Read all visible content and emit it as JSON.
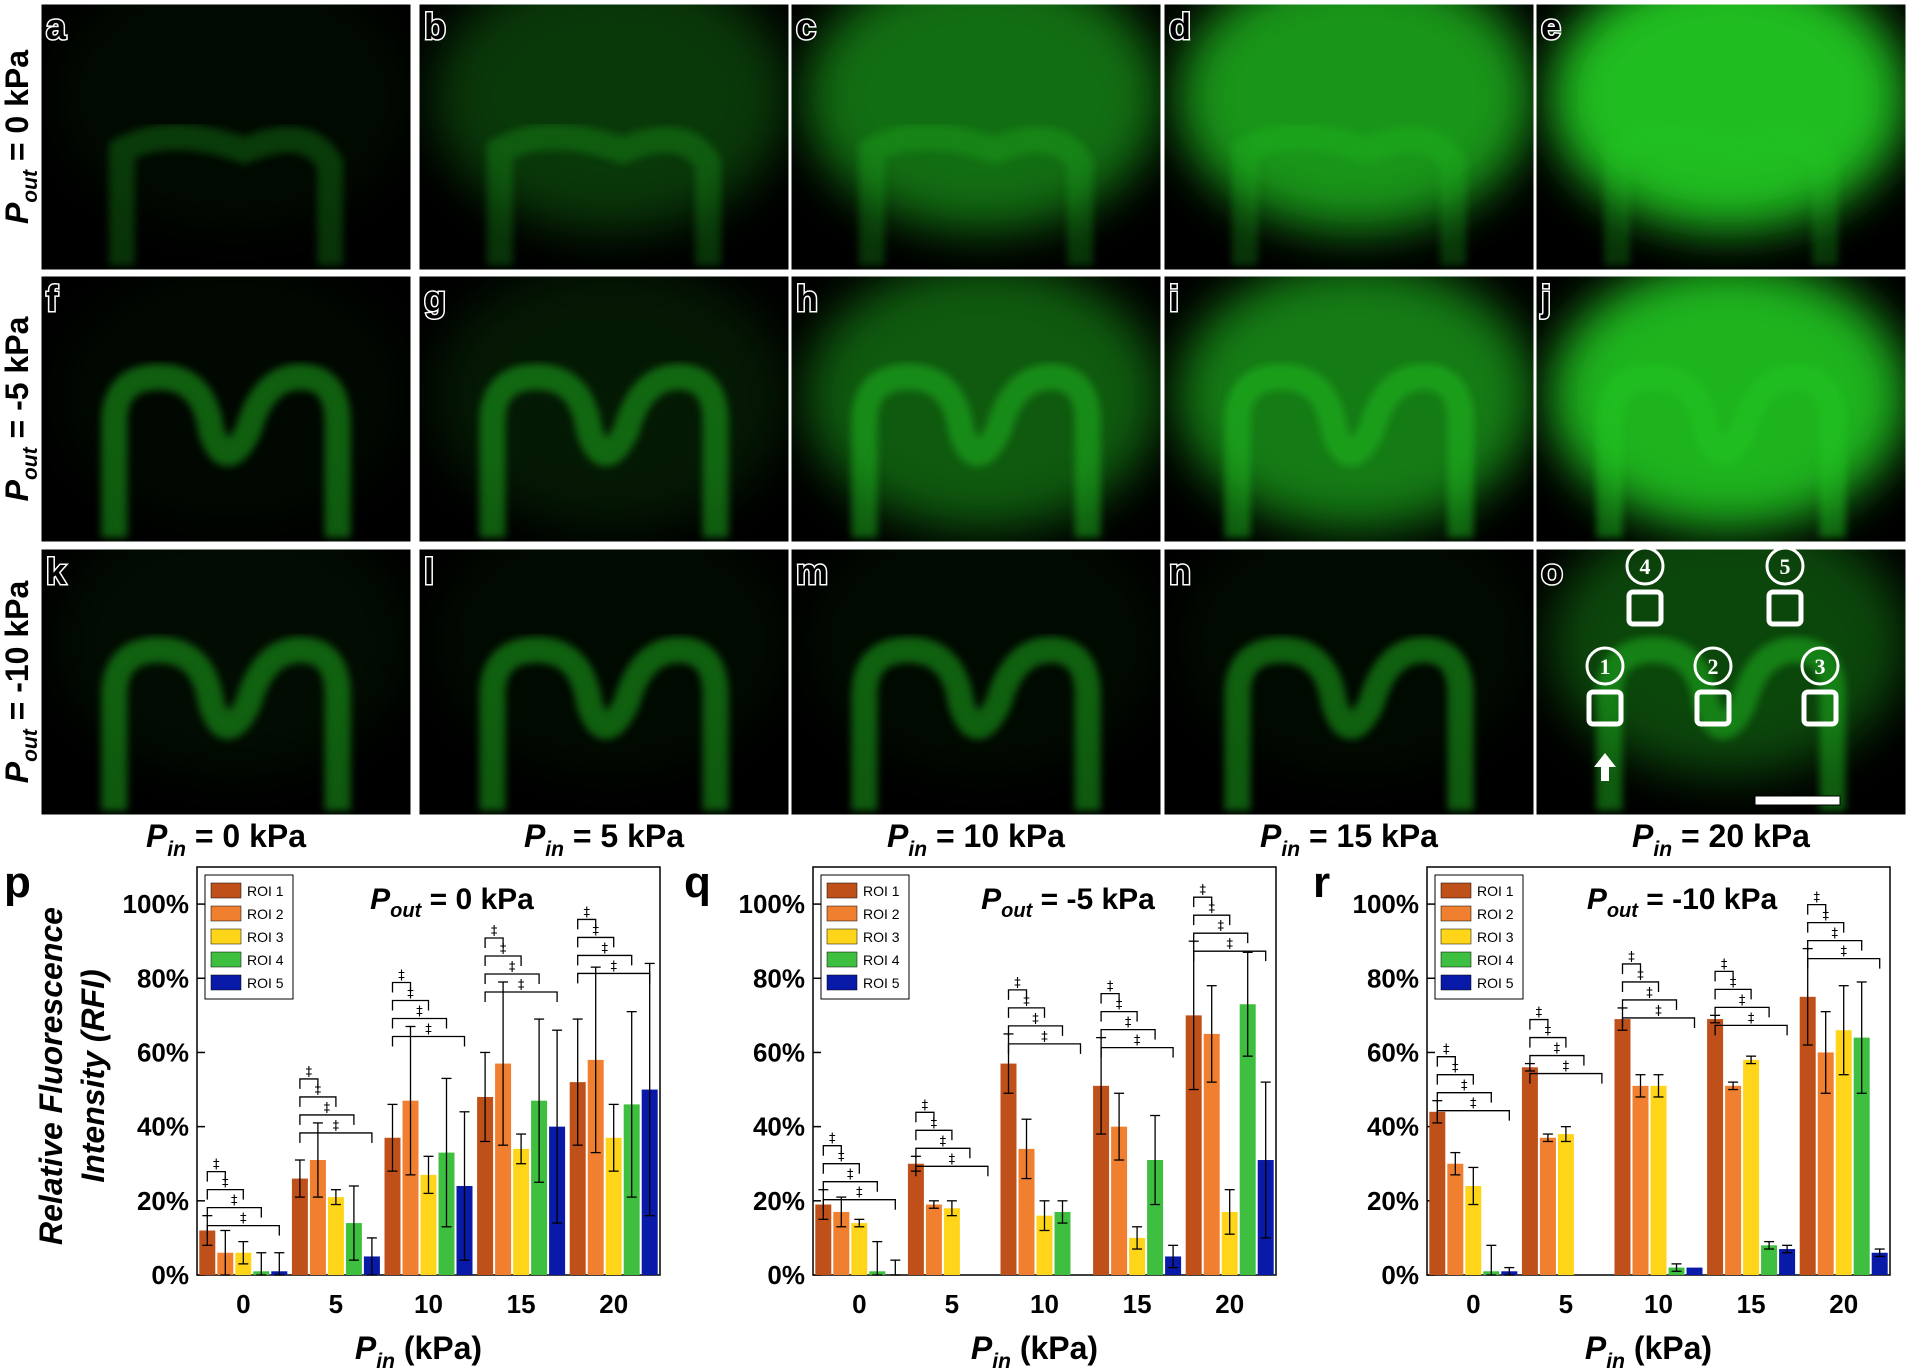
{
  "figure": {
    "panel_letters": [
      "a",
      "b",
      "c",
      "d",
      "e",
      "f",
      "g",
      "h",
      "i",
      "j",
      "k",
      "l",
      "m",
      "n",
      "o"
    ],
    "row_labels": [
      {
        "symbol": "P",
        "sub": "out",
        "rest": " = 0 kPa"
      },
      {
        "symbol": "P",
        "sub": "out",
        "rest": " = -5 kPa"
      },
      {
        "symbol": "P",
        "sub": "out",
        "rest": " = -10 kPa"
      }
    ],
    "column_labels": [
      {
        "symbol": "P",
        "sub": "in",
        "rest": " = 0 kPa"
      },
      {
        "symbol": "P",
        "sub": "in",
        "rest": " = 5 kPa"
      },
      {
        "symbol": "P",
        "sub": "in",
        "rest": " = 10 kPa"
      },
      {
        "symbol": "P",
        "sub": "in",
        "rest": " = 15 kPa"
      },
      {
        "symbol": "P",
        "sub": "in",
        "rest": " = 20 kPa"
      }
    ],
    "roi_markers": [
      "1",
      "2",
      "3",
      "4",
      "5"
    ],
    "image_brightness": [
      [
        0.05,
        0.28,
        0.55,
        0.75,
        0.95
      ],
      [
        0.04,
        0.12,
        0.45,
        0.62,
        0.9
      ],
      [
        0.06,
        0.05,
        0.05,
        0.05,
        0.35
      ]
    ],
    "colors": {
      "ROI 1": "#c0501a",
      "ROI 2": "#f07f30",
      "ROI 3": "#ffd51a",
      "ROI 4": "#3fbf3f",
      "ROI 5": "#0a1aa8",
      "fluorescence": "#22c822"
    }
  },
  "chart_data": [
    {
      "panel": "p",
      "type": "bar",
      "title": {
        "symbol": "P",
        "sub": "out",
        "rest": " = 0 kPa"
      },
      "xlabel": {
        "symbol": "P",
        "sub": "in",
        "rest": " (kPa)"
      },
      "ylabel": [
        "Relative Fluorescence",
        "Intensity (RFI)"
      ],
      "categories": [
        "0",
        "5",
        "10",
        "15",
        "20"
      ],
      "yticks": [
        "0%",
        "20%",
        "40%",
        "60%",
        "80%",
        "100%"
      ],
      "ylim": [
        0,
        110
      ],
      "legend": [
        "ROI 1",
        "ROI 2",
        "ROI 3",
        "ROI 4",
        "ROI 5"
      ],
      "legend_position": "top-left",
      "series": [
        {
          "name": "ROI 1",
          "values": [
            12,
            26,
            37,
            48,
            52
          ],
          "errors": [
            4,
            5,
            9,
            12,
            17
          ]
        },
        {
          "name": "ROI 2",
          "values": [
            6,
            31,
            47,
            57,
            58
          ],
          "errors": [
            6,
            10,
            20,
            22,
            25
          ]
        },
        {
          "name": "ROI 3",
          "values": [
            6,
            21,
            27,
            34,
            37
          ],
          "errors": [
            3,
            2,
            5,
            4,
            9
          ]
        },
        {
          "name": "ROI 4",
          "values": [
            1,
            14,
            33,
            47,
            46
          ],
          "errors": [
            5,
            10,
            20,
            22,
            25
          ]
        },
        {
          "name": "ROI 5",
          "values": [
            1,
            5,
            24,
            40,
            50
          ],
          "errors": [
            5,
            5,
            20,
            26,
            34
          ]
        }
      ]
    },
    {
      "panel": "q",
      "type": "bar",
      "title": {
        "symbol": "P",
        "sub": "out",
        "rest": " = -5 kPa"
      },
      "xlabel": {
        "symbol": "P",
        "sub": "in",
        "rest": " (kPa)"
      },
      "categories": [
        "0",
        "5",
        "10",
        "15",
        "20"
      ],
      "yticks": [
        "0%",
        "20%",
        "40%",
        "60%",
        "80%",
        "100%"
      ],
      "ylim": [
        0,
        110
      ],
      "legend": [
        "ROI 1",
        "ROI 2",
        "ROI 3",
        "ROI 4",
        "ROI 5"
      ],
      "legend_position": "top-left",
      "series": [
        {
          "name": "ROI 1",
          "values": [
            19,
            30,
            57,
            51,
            70
          ],
          "errors": [
            4,
            2,
            8,
            13,
            20
          ]
        },
        {
          "name": "ROI 2",
          "values": [
            17,
            19,
            34,
            40,
            65
          ],
          "errors": [
            4,
            1,
            8,
            9,
            13
          ]
        },
        {
          "name": "ROI 3",
          "values": [
            14,
            18,
            16,
            10,
            17
          ],
          "errors": [
            1,
            2,
            4,
            3,
            6
          ]
        },
        {
          "name": "ROI 4",
          "values": [
            1,
            0,
            17,
            31,
            73
          ],
          "errors": [
            8,
            0,
            3,
            12,
            14
          ]
        },
        {
          "name": "ROI 5",
          "values": [
            0,
            0,
            0,
            5,
            31
          ],
          "errors": [
            4,
            0,
            0,
            3,
            21
          ]
        }
      ]
    },
    {
      "panel": "r",
      "type": "bar",
      "title": {
        "symbol": "P",
        "sub": "out",
        "rest": " = -10 kPa"
      },
      "xlabel": {
        "symbol": "P",
        "sub": "in",
        "rest": " (kPa)"
      },
      "categories": [
        "0",
        "5",
        "10",
        "15",
        "20"
      ],
      "yticks": [
        "0%",
        "20%",
        "40%",
        "60%",
        "80%",
        "100%"
      ],
      "ylim": [
        0,
        110
      ],
      "legend": [
        "ROI 1",
        "ROI 2",
        "ROI 3",
        "ROI 4",
        "ROI 5"
      ],
      "legend_position": "top-left",
      "series": [
        {
          "name": "ROI 1",
          "values": [
            44,
            56,
            69,
            69,
            75
          ],
          "errors": [
            3,
            1,
            3,
            1,
            13
          ]
        },
        {
          "name": "ROI 2",
          "values": [
            30,
            37,
            51,
            51,
            60
          ],
          "errors": [
            3,
            1,
            3,
            1,
            11
          ]
        },
        {
          "name": "ROI 3",
          "values": [
            24,
            38,
            51,
            58,
            66
          ],
          "errors": [
            5,
            2,
            3,
            1,
            12
          ]
        },
        {
          "name": "ROI 4",
          "values": [
            1,
            0,
            2,
            8,
            64
          ],
          "errors": [
            7,
            0,
            1,
            1,
            15
          ]
        },
        {
          "name": "ROI 5",
          "values": [
            1,
            0,
            2,
            7,
            6
          ],
          "errors": [
            1,
            0,
            0,
            1,
            1
          ]
        }
      ]
    }
  ]
}
